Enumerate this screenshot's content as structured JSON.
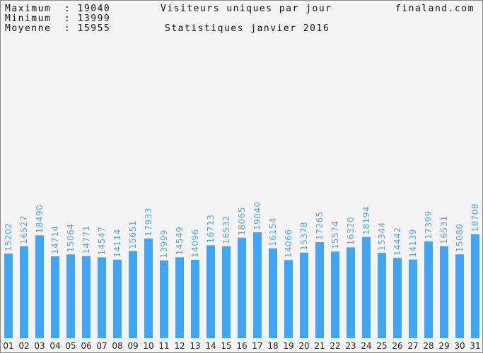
{
  "header": {
    "max_label": "Maximum  :",
    "max_value": "19040",
    "min_label": "Minimum  :",
    "min_value": "13999",
    "avg_label": "Moyenne  :",
    "avg_value": "15955",
    "title": "Visiteurs uniques par jour",
    "subtitle": "Statistiques janvier 2016",
    "site": "finaland.com"
  },
  "colors": {
    "bar": "#3fa5f4",
    "value_label": "#4aa8ee",
    "background": "#f4f4f4"
  },
  "chart_data": {
    "type": "bar",
    "title": "Visiteurs uniques par jour",
    "subtitle": "Statistiques janvier 2016",
    "categories": [
      "01",
      "02",
      "03",
      "04",
      "05",
      "06",
      "07",
      "08",
      "09",
      "10",
      "11",
      "12",
      "13",
      "14",
      "15",
      "16",
      "17",
      "18",
      "19",
      "20",
      "21",
      "22",
      "23",
      "24",
      "25",
      "26",
      "27",
      "28",
      "29",
      "30",
      "31"
    ],
    "values": [
      15202,
      16527,
      18490,
      14714,
      15064,
      14771,
      14547,
      14114,
      15651,
      17933,
      13999,
      14549,
      14096,
      16713,
      16532,
      18065,
      19040,
      16154,
      14066,
      15378,
      17265,
      15574,
      16320,
      18194,
      15344,
      14442,
      14139,
      17399,
      16531,
      15080,
      18708
    ],
    "value_labels": [
      "15202",
      "16527",
      "18490",
      "14714",
      "15064",
      "14771",
      "14547",
      "14114",
      "15651",
      "17933",
      "13999",
      "14549",
      "14096",
      "16713",
      "16532",
      "18065",
      "19040",
      "16154",
      "14066",
      "15378",
      "17265",
      "15574",
      "16320",
      "18194",
      "15344",
      "14442",
      "14139",
      "17399",
      "16531",
      "15080",
      "18708"
    ],
    "ylim": [
      0,
      19040
    ],
    "grid": false,
    "legend": "none"
  }
}
